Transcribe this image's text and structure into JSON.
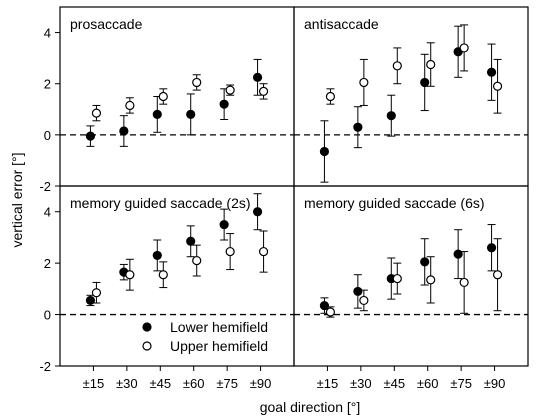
{
  "figure": {
    "ylabel": "vertical error [°]",
    "xlabel": "goal direction [°]",
    "legend": {
      "lower": "Lower hemifield",
      "upper": "Upper hemifield",
      "placement": "bottom-left panel, lower right"
    }
  },
  "chart_data": [
    {
      "type": "scatter",
      "title": "prosaccade",
      "categories": [
        "±15",
        "±30",
        "±45",
        "±60",
        "±75",
        "±90"
      ],
      "ylim": [
        -2,
        5
      ],
      "yticks": [
        -2,
        0,
        2,
        4
      ],
      "series": [
        {
          "name": "Lower hemifield",
          "marker": "filled",
          "values": [
            -0.05,
            0.15,
            0.8,
            0.8,
            1.2,
            2.25
          ],
          "err": [
            0.4,
            0.6,
            0.7,
            0.8,
            0.6,
            0.7
          ]
        },
        {
          "name": "Upper hemifield",
          "marker": "open",
          "values": [
            0.85,
            1.15,
            1.5,
            2.05,
            1.75,
            1.7
          ],
          "err": [
            0.3,
            0.3,
            0.3,
            0.3,
            0.2,
            0.3
          ]
        }
      ]
    },
    {
      "type": "scatter",
      "title": "antisaccade",
      "categories": [
        "±15",
        "±30",
        "±45",
        "±60",
        "±75",
        "±90"
      ],
      "ylim": [
        -2,
        5
      ],
      "yticks": [
        -2,
        0,
        2,
        4
      ],
      "series": [
        {
          "name": "Lower hemifield",
          "marker": "filled",
          "values": [
            -0.65,
            0.3,
            0.75,
            2.05,
            3.25,
            2.45
          ],
          "err": [
            1.2,
            0.8,
            0.8,
            1.1,
            1.0,
            1.1
          ]
        },
        {
          "name": "Upper hemifield",
          "marker": "open",
          "values": [
            1.5,
            2.05,
            2.7,
            2.75,
            3.4,
            1.9
          ],
          "err": [
            0.3,
            0.9,
            0.7,
            0.85,
            0.9,
            1.05
          ]
        }
      ]
    },
    {
      "type": "scatter",
      "title": "memory guided saccade (2s)",
      "categories": [
        "±15",
        "±30",
        "±45",
        "±60",
        "±75",
        "±90"
      ],
      "ylim": [
        -2,
        5
      ],
      "yticks": [
        -2,
        0,
        2,
        4
      ],
      "series": [
        {
          "name": "Lower hemifield",
          "marker": "filled",
          "values": [
            0.55,
            1.65,
            2.3,
            2.85,
            3.5,
            4.0
          ],
          "err": [
            0.2,
            0.3,
            0.6,
            0.6,
            0.6,
            0.7
          ]
        },
        {
          "name": "Upper hemifield",
          "marker": "open",
          "values": [
            0.85,
            1.55,
            1.55,
            2.1,
            2.45,
            2.45
          ],
          "err": [
            0.4,
            0.6,
            0.5,
            0.6,
            0.7,
            0.8
          ]
        }
      ]
    },
    {
      "type": "scatter",
      "title": "memory guided saccade (6s)",
      "categories": [
        "±15",
        "±30",
        "±45",
        "±60",
        "±75",
        "±90"
      ],
      "ylim": [
        -2,
        5
      ],
      "yticks": [
        -2,
        0,
        2,
        4
      ],
      "series": [
        {
          "name": "Lower hemifield",
          "marker": "filled",
          "values": [
            0.35,
            0.9,
            1.4,
            2.05,
            2.35,
            2.6
          ],
          "err": [
            0.3,
            0.65,
            0.8,
            0.9,
            0.95,
            0.9
          ]
        },
        {
          "name": "Upper hemifield",
          "marker": "open",
          "values": [
            0.1,
            0.55,
            1.4,
            1.35,
            1.25,
            1.55
          ],
          "err": [
            0.2,
            0.4,
            0.6,
            0.9,
            1.2,
            1.4
          ]
        }
      ]
    }
  ]
}
